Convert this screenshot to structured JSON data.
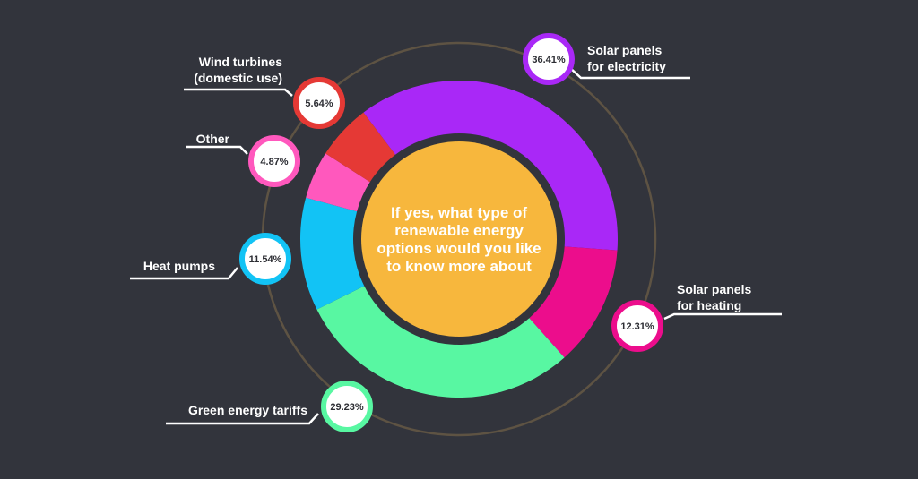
{
  "colors": {
    "background": "#32343c",
    "center_disc": "#f7b73d",
    "orbit_ring": "#5e5343",
    "leader_line": "#ffffff"
  },
  "chart_data": {
    "type": "pie",
    "title": "If yes, what type of renewable energy options would you like to know more about",
    "title_lines": [
      "If yes, what type of",
      "renewable energy",
      "options would you like",
      "to know more about"
    ],
    "slices": [
      {
        "label_lines": [
          "Solar panels",
          "for electricity"
        ],
        "value": 36.41,
        "value_label": "36.41%",
        "color": "#a928f7"
      },
      {
        "label_lines": [
          "Solar panels",
          "for heating"
        ],
        "value": 12.31,
        "value_label": "12.31%",
        "color": "#ec0d8c"
      },
      {
        "label_lines": [
          "Green energy tariffs"
        ],
        "value": 29.23,
        "value_label": "29.23%",
        "color": "#58f7a2"
      },
      {
        "label_lines": [
          "Heat pumps"
        ],
        "value": 11.54,
        "value_label": "11.54%",
        "color": "#12c3f5"
      },
      {
        "label_lines": [
          "Other"
        ],
        "value": 4.87,
        "value_label": "4.87%",
        "color": "#ff58bd"
      },
      {
        "label_lines": [
          "Wind turbines",
          "(domestic use)"
        ],
        "value": 5.64,
        "value_label": "5.64%",
        "color": "#e53935"
      }
    ],
    "start_angle_deg": -37,
    "direction": "clockwise",
    "legend": "none"
  }
}
